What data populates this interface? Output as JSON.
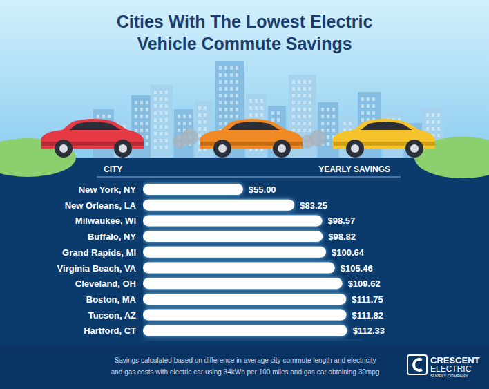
{
  "chart_data": {
    "type": "bar",
    "orientation": "horizontal",
    "title": "Cities With The Lowest Electric Vehicle Commute Savings",
    "ylabel": "CITY",
    "xlabel": "YEARLY SAVINGS",
    "categories": [
      "New York, NY",
      "New Orleans, LA",
      "Milwaukee, WI",
      "Buffalo, NY",
      "Grand Rapids, MI",
      "Virginia Beach, VA",
      "Cleveland, OH",
      "Boston, MA",
      "Tucson, AZ",
      "Hartford, CT"
    ],
    "values": [
      55.0,
      83.25,
      98.57,
      98.82,
      100.64,
      105.46,
      109.62,
      111.75,
      111.82,
      112.33
    ],
    "value_labels": [
      "$55.00",
      "$83.25",
      "$98.57",
      "$98.82",
      "$100.64",
      "$105.46",
      "$109.62",
      "$111.75",
      "$111.82",
      "$112.33"
    ],
    "data_labels": true,
    "tick_labels": false,
    "grid": false,
    "color": "#ffffff",
    "xlim": [
      0,
      120
    ],
    "annotations": [
      "Savings calculated based on difference in average city commute length and electricity",
      "and gas costs with electric car using 34kWh per 100 miles and gas car obtaining 30mpg",
      "CRESCENT",
      "ELECTRIC",
      "SUPPLY COMPANY"
    ]
  }
}
